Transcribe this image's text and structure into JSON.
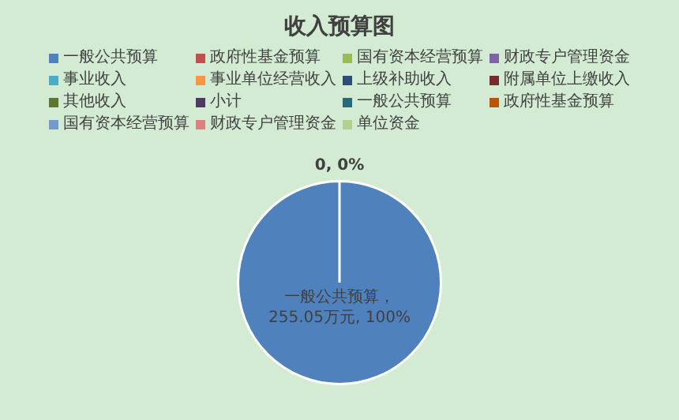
{
  "chart_data": {
    "type": "pie",
    "title": "收入预算图",
    "categories": [
      "一般公共预算",
      "政府性基金预算",
      "国有资本经营预算",
      "财政专户管理资金",
      "事业收入",
      "事业单位经营收入",
      "上级补助收入",
      "附属单位上缴收入",
      "其他收入",
      "小计",
      "一般公共预算",
      "政府性基金预算",
      "国有资本经营预算",
      "财政专户管理资金",
      "单位资金"
    ],
    "values": [
      255.05,
      0,
      0,
      0,
      0,
      0,
      0,
      0,
      0,
      0,
      0,
      0,
      0,
      0,
      0
    ],
    "colors": [
      "#4f81bd",
      "#c0504d",
      "#9bbb59",
      "#8064a2",
      "#4bacc6",
      "#f79646",
      "#2c4d75",
      "#772c2a",
      "#5f7530",
      "#4d3b62",
      "#276a7c",
      "#b65708",
      "#729aca",
      "#d9817f",
      "#b4cf8f"
    ],
    "value_labels": [
      "一般公共预算，255.05万元, 100%",
      "0, 0%",
      null,
      null,
      null,
      null,
      null,
      null,
      null,
      null,
      null,
      null,
      null,
      null,
      null
    ],
    "legend": "top"
  }
}
